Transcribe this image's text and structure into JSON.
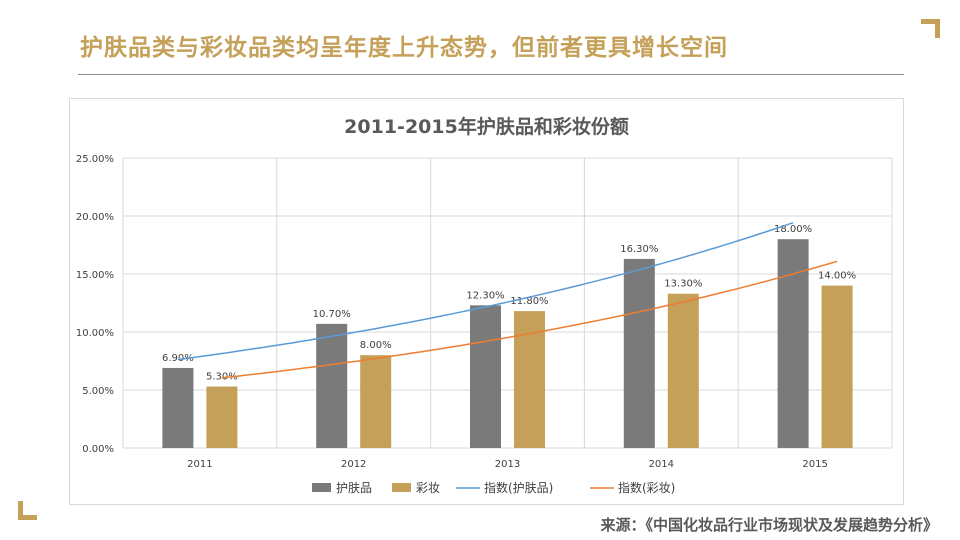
{
  "slide": {
    "title": "护肤品类与彩妆品类均呈年度上升态势，但前者更具增长空间",
    "source": "来源：《中国化妆品行业市场现状及发展趋势分析》"
  },
  "colors": {
    "accent": "#c5a059",
    "gray": "#7a7a7a",
    "trend_skincare": "#5b9bd5",
    "trend_makeup": "#ed7d31",
    "grid": "#d9d9d9",
    "text": "#404040"
  },
  "chart_data": {
    "type": "bar",
    "title": "2011-2015年护肤品和彩妆份额",
    "categories": [
      "2011",
      "2012",
      "2013",
      "2014",
      "2015"
    ],
    "series": [
      {
        "name": "护肤品",
        "values": [
          6.9,
          10.7,
          12.3,
          16.3,
          18.0
        ],
        "labels": [
          "6.90%",
          "10.70%",
          "12.30%",
          "16.30%",
          "18.00%"
        ]
      },
      {
        "name": "彩妆",
        "values": [
          5.3,
          8.0,
          11.8,
          13.3,
          14.0
        ],
        "labels": [
          "5.30%",
          "8.00%",
          "11.80%",
          "13.30%",
          "14.00%"
        ]
      }
    ],
    "trendlines": [
      {
        "name": "指数(护肤品)",
        "of_series": "护肤品",
        "type": "exponential"
      },
      {
        "name": "指数(彩妆)",
        "of_series": "彩妆",
        "type": "exponential"
      }
    ],
    "ylim": [
      0,
      25
    ],
    "yticks": [
      "0.00%",
      "5.00%",
      "10.00%",
      "15.00%",
      "20.00%",
      "25.00%"
    ],
    "ytick_values": [
      0,
      5,
      10,
      15,
      20,
      25
    ],
    "xlabel": "",
    "ylabel": "",
    "grid": true,
    "legend": "bottom"
  }
}
